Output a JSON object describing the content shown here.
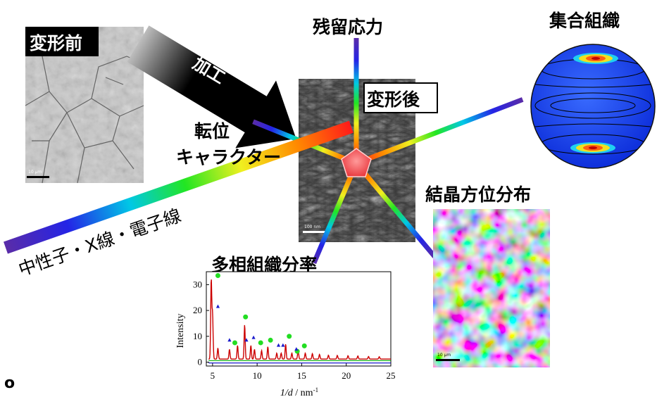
{
  "labels": {
    "before_deformation": "変形前",
    "processing": "加工",
    "after_deformation": "変形後",
    "residual_stress": "残留応力",
    "texture": "集合組織",
    "dislocation_line1": "転位",
    "dislocation_line2": "キャラクター",
    "crystal_orientation": "結晶方位分布",
    "beam_sources": "中性子・X線・電子線",
    "phase_fraction": "多相組織分率",
    "bullet": "o"
  },
  "micrograph_scalebars": {
    "before": "10 µm",
    "after": "100 nm",
    "ebsd": "10 µm"
  },
  "colors": {
    "red_pentagon": "#e8343a",
    "red_trace": "#cc0000",
    "green_markers": "#22dd22",
    "blue_markers": "#1a1acc",
    "green_trace": "#00aa00",
    "pole_figure_blue": "#1a3cf0"
  },
  "chart_data": {
    "type": "line",
    "title": "",
    "xlabel": "1/d / nm-1",
    "xlabel_parts": {
      "italic": "1/d",
      "rest": " / nm",
      "sup": "-1"
    },
    "ylabel": "Intensity",
    "xlim": [
      4.3,
      25
    ],
    "ylim": [
      -1.5,
      35
    ],
    "xticks": [
      5,
      10,
      15,
      20,
      25
    ],
    "yticks": [
      0,
      10,
      20,
      30
    ],
    "series": [
      {
        "color": "#cc0000",
        "baseline": 1.2,
        "peaks": [
          {
            "x": 4.85,
            "y": 32
          },
          {
            "x": 5.0,
            "y": 18.5
          },
          {
            "x": 5.6,
            "y": 5.5
          },
          {
            "x": 6.9,
            "y": 5
          },
          {
            "x": 7.8,
            "y": 6.5
          },
          {
            "x": 8.6,
            "y": 14.5
          },
          {
            "x": 9.3,
            "y": 6.5
          },
          {
            "x": 9.7,
            "y": 5
          },
          {
            "x": 10.5,
            "y": 4.5
          },
          {
            "x": 11.2,
            "y": 6
          },
          {
            "x": 12.2,
            "y": 3.5
          },
          {
            "x": 12.7,
            "y": 3.5
          },
          {
            "x": 13.2,
            "y": 7
          },
          {
            "x": 13.9,
            "y": 3.5
          },
          {
            "x": 14.6,
            "y": 4.5
          },
          {
            "x": 15.4,
            "y": 3.5
          },
          {
            "x": 16.2,
            "y": 3.3
          },
          {
            "x": 17.0,
            "y": 3
          },
          {
            "x": 18.0,
            "y": 2.7
          },
          {
            "x": 19.0,
            "y": 2.6
          },
          {
            "x": 20.2,
            "y": 2.5
          },
          {
            "x": 21.3,
            "y": 2.4
          },
          {
            "x": 22.5,
            "y": 2.2
          },
          {
            "x": 23.7,
            "y": 2.1
          }
        ]
      },
      {
        "color": "#00aa00",
        "baseline": 0.6
      },
      {
        "color": "#1a1acc",
        "baseline": -0.3
      }
    ],
    "markers_green": [
      {
        "x": 5.6,
        "y": 33.5
      },
      {
        "x": 7.5,
        "y": 7.5
      },
      {
        "x": 8.7,
        "y": 17.5
      },
      {
        "x": 10.4,
        "y": 7.5
      },
      {
        "x": 11.5,
        "y": 8.5
      },
      {
        "x": 13.6,
        "y": 10
      },
      {
        "x": 14.5,
        "y": 4.2
      },
      {
        "x": 15.3,
        "y": 6.3
      }
    ],
    "markers_blue": [
      {
        "x": 5.6,
        "y": 21.5
      },
      {
        "x": 6.9,
        "y": 8.5
      },
      {
        "x": 8.8,
        "y": 8.5
      },
      {
        "x": 9.6,
        "y": 9.5
      },
      {
        "x": 12.4,
        "y": 6.5
      },
      {
        "x": 12.9,
        "y": 6.5
      },
      {
        "x": 14.4,
        "y": 5
      }
    ]
  }
}
